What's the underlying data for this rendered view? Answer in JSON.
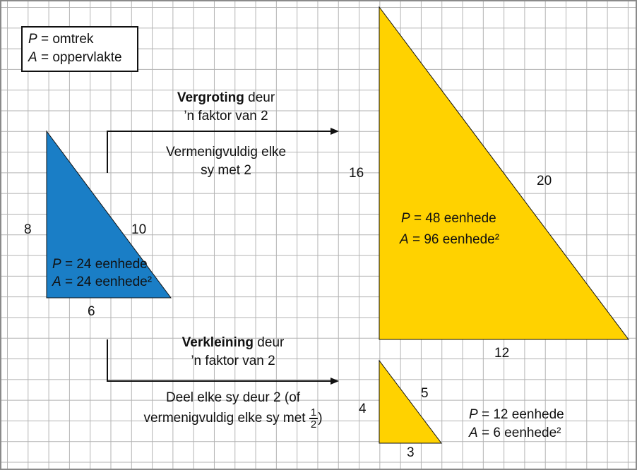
{
  "legend": {
    "p_var": "P",
    "p_text": " = omtrek",
    "a_var": "A",
    "a_text": " = oppervlakte"
  },
  "small_triangle": {
    "color": "#1a7ec6",
    "side_vertical": "8",
    "side_hypotenuse": "10",
    "side_base": "6",
    "p_var": "P",
    "p_text": " = 24 eenhede",
    "a_var": "A",
    "a_text": " = 24 eenhede²"
  },
  "large_triangle": {
    "color": "#ffd200",
    "side_vertical": "16",
    "side_hypotenuse": "20",
    "side_base": "12",
    "p_var": "P",
    "p_text": " = 48 eenhede",
    "a_var": "A",
    "a_text": " = 96 eenhede²"
  },
  "tiny_triangle": {
    "color": "#ffd200",
    "side_vertical": "4",
    "side_hypotenuse": "5",
    "side_base": "3",
    "p_var": "P",
    "p_text": " = 12 eenhede",
    "a_var": "A",
    "a_text": " = 6 eenhede²"
  },
  "enlarge": {
    "title_bold": "Vergroting",
    "title_rest": " deur",
    "line2": "’n faktor van 2",
    "desc1": "Vermenigvuldig elke",
    "desc2": "sy met 2"
  },
  "reduce": {
    "title_bold": "Verkleining",
    "title_rest": " deur",
    "line2": "’n faktor van 2",
    "desc1": "Deel elke sy deur 2 (of",
    "desc2_pre": "vermenigvuldig elke sy met ",
    "frac_num": "1",
    "frac_den": "2",
    "desc2_post": ")"
  }
}
